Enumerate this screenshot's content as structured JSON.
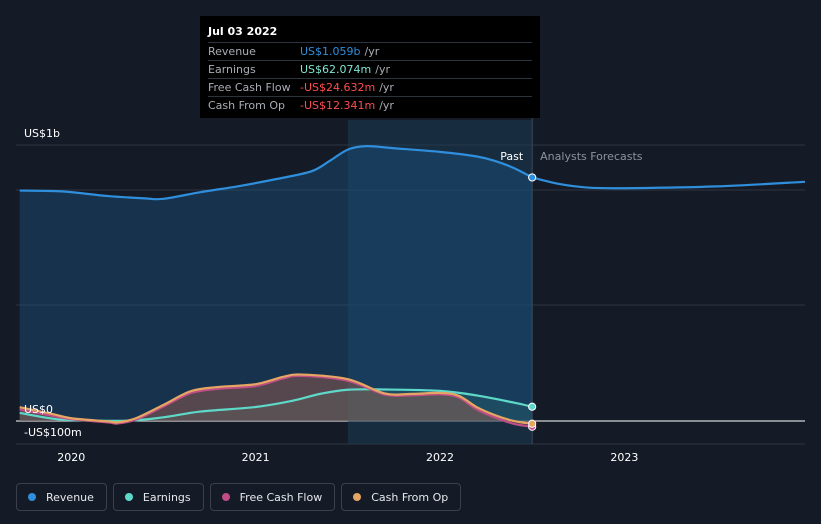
{
  "tooltip": {
    "date": "Jul 03 2022",
    "rows": [
      {
        "name": "Revenue",
        "value": "US$1.059b",
        "unit": "/yr",
        "color": "#2f8fdd"
      },
      {
        "name": "Earnings",
        "value": "US$62.074m",
        "unit": "/yr",
        "color": "#7fe6d4"
      },
      {
        "name": "Free Cash Flow",
        "value": "-US$24.632m",
        "unit": "/yr",
        "color": "#ff4d4d"
      },
      {
        "name": "Cash From Op",
        "value": "-US$12.341m",
        "unit": "/yr",
        "color": "#ff4d4d"
      }
    ]
  },
  "legend": [
    {
      "label": "Revenue",
      "color": "#2f8fdd"
    },
    {
      "label": "Earnings",
      "color": "#5ed8c8"
    },
    {
      "label": "Free Cash Flow",
      "color": "#c04d86"
    },
    {
      "label": "Cash From Op",
      "color": "#e5a663"
    }
  ],
  "chart_data": {
    "type": "line",
    "ylim": [
      -100,
      1200
    ],
    "xlim": [
      2019.7,
      2023.98
    ],
    "y_labels": [
      {
        "text": "US$1b",
        "value": 1200
      },
      {
        "text": "US$0",
        "value": 0
      },
      {
        "text": "-US$100m",
        "value": -100
      }
    ],
    "x_ticks": [
      {
        "label": "2020",
        "x": 2020
      },
      {
        "label": "2021",
        "x": 2021
      },
      {
        "label": "2022",
        "x": 2022
      },
      {
        "label": "2023",
        "x": 2023
      }
    ],
    "regions": {
      "past_label": "Past",
      "forecast_label": "Analysts Forecasts",
      "split_x": 2022.5,
      "shade_start_x": 2021.5
    },
    "series": [
      {
        "name": "Revenue",
        "color": "#2f8fdd",
        "points": [
          [
            2019.72,
            1002
          ],
          [
            2019.9,
            1000
          ],
          [
            2020.0,
            995
          ],
          [
            2020.2,
            978
          ],
          [
            2020.4,
            968
          ],
          [
            2020.5,
            966
          ],
          [
            2020.7,
            995
          ],
          [
            2020.9,
            1020
          ],
          [
            2021.1,
            1050
          ],
          [
            2021.3,
            1085
          ],
          [
            2021.4,
            1130
          ],
          [
            2021.5,
            1180
          ],
          [
            2021.6,
            1195
          ],
          [
            2021.75,
            1186
          ],
          [
            2022.0,
            1170
          ],
          [
            2022.2,
            1150
          ],
          [
            2022.3,
            1130
          ],
          [
            2022.4,
            1100
          ],
          [
            2022.5,
            1059
          ]
        ],
        "forecast": [
          [
            2022.5,
            1059
          ],
          [
            2022.65,
            1030
          ],
          [
            2022.8,
            1015
          ],
          [
            2023.0,
            1012
          ],
          [
            2023.5,
            1020
          ],
          [
            2023.98,
            1040
          ]
        ]
      },
      {
        "name": "Earnings",
        "color": "#5ed8c8",
        "points": [
          [
            2019.72,
            35
          ],
          [
            2019.9,
            10
          ],
          [
            2020.0,
            4
          ],
          [
            2020.3,
            1
          ],
          [
            2020.5,
            16
          ],
          [
            2020.7,
            41
          ],
          [
            2021.0,
            61
          ],
          [
            2021.2,
            88
          ],
          [
            2021.35,
            118
          ],
          [
            2021.5,
            136
          ],
          [
            2021.7,
            137
          ],
          [
            2022.0,
            131
          ],
          [
            2022.2,
            111
          ],
          [
            2022.4,
            80
          ],
          [
            2022.5,
            62
          ]
        ]
      },
      {
        "name": "Free Cash Flow",
        "color": "#c04d86",
        "points": [
          [
            2019.72,
            50
          ],
          [
            2019.9,
            22
          ],
          [
            2020.0,
            8
          ],
          [
            2020.2,
            -6
          ],
          [
            2020.25,
            -11
          ],
          [
            2020.35,
            6
          ],
          [
            2020.5,
            63
          ],
          [
            2020.65,
            122
          ],
          [
            2020.8,
            140
          ],
          [
            2021.0,
            152
          ],
          [
            2021.15,
            185
          ],
          [
            2021.25,
            196
          ],
          [
            2021.5,
            175
          ],
          [
            2021.7,
            115
          ],
          [
            2021.85,
            112
          ],
          [
            2022.0,
            116
          ],
          [
            2022.1,
            103
          ],
          [
            2022.2,
            50
          ],
          [
            2022.3,
            15
          ],
          [
            2022.4,
            -12
          ],
          [
            2022.5,
            -25
          ]
        ]
      },
      {
        "name": "Cash From Op",
        "color": "#e5a663",
        "points": [
          [
            2019.72,
            60
          ],
          [
            2019.9,
            30
          ],
          [
            2020.0,
            12
          ],
          [
            2020.2,
            -2
          ],
          [
            2020.25,
            -6
          ],
          [
            2020.35,
            12
          ],
          [
            2020.5,
            70
          ],
          [
            2020.65,
            130
          ],
          [
            2020.8,
            148
          ],
          [
            2021.0,
            160
          ],
          [
            2021.15,
            192
          ],
          [
            2021.25,
            202
          ],
          [
            2021.5,
            182
          ],
          [
            2021.7,
            120
          ],
          [
            2021.85,
            118
          ],
          [
            2022.0,
            122
          ],
          [
            2022.1,
            110
          ],
          [
            2022.2,
            60
          ],
          [
            2022.3,
            25
          ],
          [
            2022.4,
            0
          ],
          [
            2022.5,
            -12
          ]
        ]
      }
    ]
  }
}
